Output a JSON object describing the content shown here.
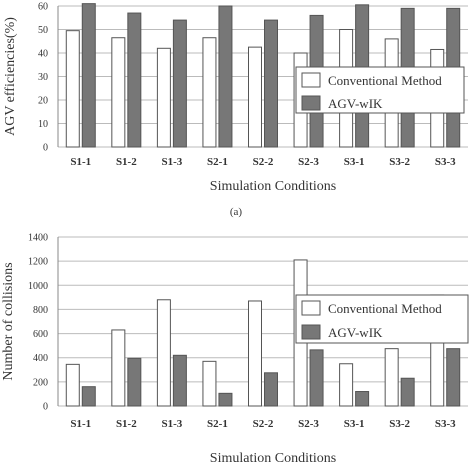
{
  "chart_data": [
    {
      "type": "bar",
      "categories": [
        "S1-1",
        "S1-2",
        "S1-3",
        "S2-1",
        "S2-2",
        "S2-3",
        "S3-1",
        "S3-2",
        "S3-3"
      ],
      "series": [
        {
          "name": "Conventional Method",
          "values": [
            49.5,
            46.5,
            42,
            46.5,
            42.5,
            40,
            50,
            46,
            41.5
          ],
          "color": "#ffffff"
        },
        {
          "name": "AGV-wIK",
          "values": [
            61,
            57,
            54,
            60,
            54,
            56,
            60.5,
            59,
            59
          ],
          "color": "#777777"
        }
      ],
      "xlabel": "Simulation Conditions",
      "ylabel": "AGV efficiencies(%)",
      "ylim": [
        0,
        60
      ],
      "yticks": [
        0,
        10,
        20,
        30,
        40,
        50,
        60
      ],
      "grid": true,
      "legend_position": "right",
      "caption": "(a)"
    },
    {
      "type": "bar",
      "categories": [
        "S1-1",
        "S1-2",
        "S1-3",
        "S2-1",
        "S2-2",
        "S2-3",
        "S3-1",
        "S3-2",
        "S3-3"
      ],
      "series": [
        {
          "name": "Conventional Method",
          "values": [
            345,
            630,
            880,
            370,
            870,
            1210,
            350,
            475,
            920
          ],
          "color": "#ffffff"
        },
        {
          "name": "AGV-wIK",
          "values": [
            160,
            395,
            420,
            105,
            275,
            465,
            120,
            230,
            475
          ],
          "color": "#777777"
        }
      ],
      "xlabel": "Simulation Conditions",
      "ylabel": "Number of collisions",
      "ylim": [
        0,
        1400
      ],
      "yticks": [
        0,
        200,
        400,
        600,
        800,
        1000,
        1200,
        1400
      ],
      "grid": true,
      "legend_position": "right"
    }
  ]
}
